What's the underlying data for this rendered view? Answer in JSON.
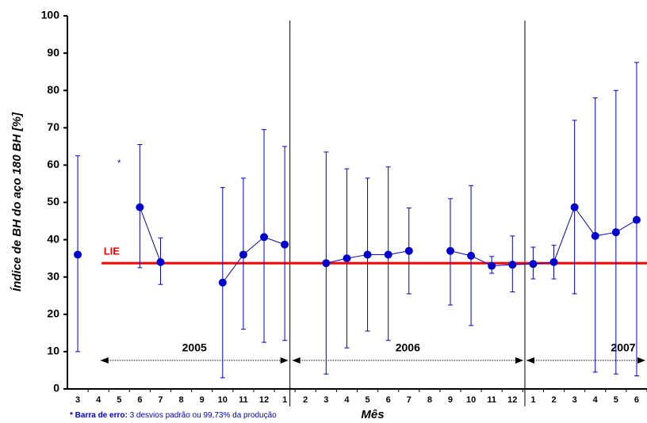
{
  "chart_data": {
    "type": "errorbar",
    "y_label": "Índice de BH do aço 180 BH [%]",
    "x_label": "Mês",
    "footnote_bold": "* Barra de erro:",
    "footnote": "3 desvios padrão ou 99,73% da produção",
    "annotation": "*",
    "annotation_position": 60.5,
    "categories": [
      "3",
      "4",
      "5",
      "6",
      "7",
      "8",
      "9",
      "10",
      "11",
      "12",
      "1",
      "2",
      "3",
      "4",
      "5",
      "6",
      "7",
      "8",
      "9",
      "10",
      "11",
      "12",
      "1",
      "2",
      "3",
      "4",
      "5",
      "6"
    ],
    "values": [
      36,
      null,
      null,
      48.7,
      34,
      null,
      null,
      28.5,
      36,
      40.7,
      38.7,
      null,
      33.7,
      35,
      36,
      36,
      37,
      null,
      37,
      35.7,
      33,
      33.3,
      33.5,
      34,
      48.7,
      41,
      42,
      45.3
    ],
    "error_high": [
      62.5,
      null,
      null,
      65.5,
      40.5,
      null,
      null,
      54,
      56.5,
      69.5,
      65,
      null,
      63.5,
      59,
      56.5,
      59.5,
      48.5,
      null,
      51,
      54.5,
      35.5,
      41,
      38,
      38.5,
      72,
      78,
      80,
      87.5
    ],
    "error_low": [
      10,
      null,
      null,
      32.5,
      28,
      null,
      null,
      3,
      16,
      12.5,
      13,
      null,
      4,
      11,
      15.5,
      13,
      25.5,
      null,
      22.5,
      17,
      31,
      26,
      29.5,
      29.5,
      25.5,
      4.5,
      4,
      3.5
    ],
    "color": "#0000cc",
    "lie": {
      "label": "LIE",
      "value": 33.7,
      "color": "#ff0000"
    },
    "years": [
      "2005",
      "2006",
      "2007"
    ],
    "ylim": [
      0,
      100
    ],
    "yticks": [
      0,
      10,
      20,
      30,
      40,
      50,
      60,
      70,
      80,
      90,
      100
    ]
  }
}
